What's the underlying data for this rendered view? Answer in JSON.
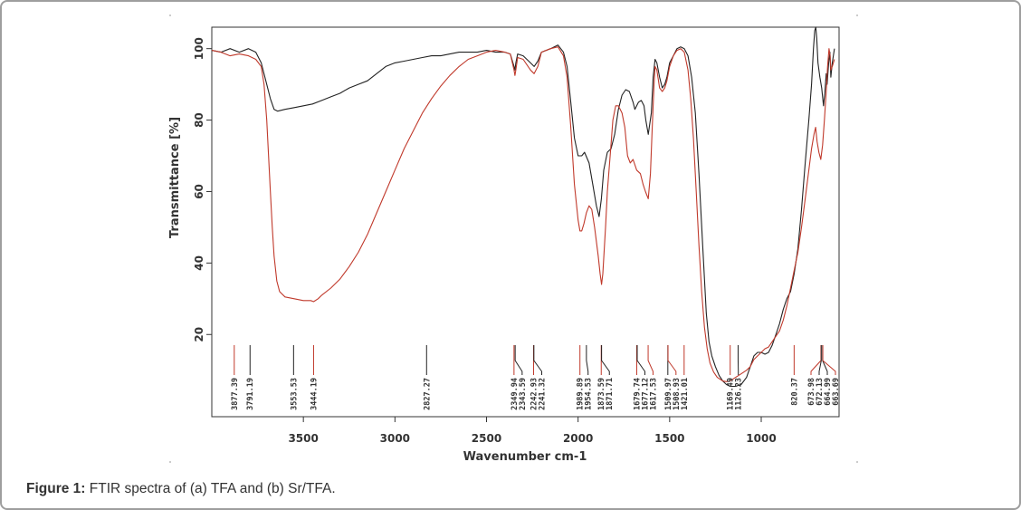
{
  "caption": {
    "label": "Figure 1:",
    "text": " FTIR spectra of (a) TFA and (b) Sr/TFA."
  },
  "chart_data": {
    "type": "line",
    "title": "",
    "xlabel": "Wavenumber cm-1",
    "ylabel": "Transmittance [%]",
    "xlim": [
      4000,
      575
    ],
    "ylim": [
      -3,
      106
    ],
    "x_ticks": [
      3500,
      3000,
      2500,
      2000,
      1500,
      1000
    ],
    "y_ticks": [
      20,
      40,
      60,
      80,
      100
    ],
    "colors": {
      "a": "#222222",
      "b": "#c0392b"
    },
    "series": [
      {
        "name": "(a) TFA",
        "color_key": "a",
        "points": [
          [
            4000,
            99.5
          ],
          [
            3950,
            99
          ],
          [
            3900,
            100
          ],
          [
            3850,
            99
          ],
          [
            3800,
            100
          ],
          [
            3760,
            99
          ],
          [
            3730,
            96
          ],
          [
            3700,
            90
          ],
          [
            3680,
            86
          ],
          [
            3660,
            83
          ],
          [
            3640,
            82.5
          ],
          [
            3600,
            83
          ],
          [
            3550,
            83.5
          ],
          [
            3500,
            84
          ],
          [
            3450,
            84.5
          ],
          [
            3400,
            85.5
          ],
          [
            3350,
            86.5
          ],
          [
            3300,
            87.5
          ],
          [
            3250,
            89
          ],
          [
            3200,
            90
          ],
          [
            3150,
            91
          ],
          [
            3100,
            93
          ],
          [
            3050,
            95
          ],
          [
            3000,
            96
          ],
          [
            2950,
            96.5
          ],
          [
            2900,
            97
          ],
          [
            2850,
            97.5
          ],
          [
            2800,
            98
          ],
          [
            2750,
            98
          ],
          [
            2700,
            98.5
          ],
          [
            2650,
            99
          ],
          [
            2600,
            99
          ],
          [
            2550,
            99
          ],
          [
            2500,
            99.5
          ],
          [
            2450,
            99
          ],
          [
            2400,
            99
          ],
          [
            2370,
            98.5
          ],
          [
            2350,
            95
          ],
          [
            2345,
            94
          ],
          [
            2340,
            96
          ],
          [
            2330,
            98.5
          ],
          [
            2300,
            98
          ],
          [
            2260,
            96
          ],
          [
            2240,
            95
          ],
          [
            2220,
            96.5
          ],
          [
            2200,
            99
          ],
          [
            2150,
            100
          ],
          [
            2110,
            101
          ],
          [
            2080,
            99
          ],
          [
            2060,
            95
          ],
          [
            2040,
            85
          ],
          [
            2020,
            75
          ],
          [
            2000,
            70
          ],
          [
            1980,
            70
          ],
          [
            1965,
            71
          ],
          [
            1940,
            68
          ],
          [
            1920,
            62
          ],
          [
            1900,
            56
          ],
          [
            1885,
            53
          ],
          [
            1873,
            58
          ],
          [
            1860,
            66
          ],
          [
            1840,
            71
          ],
          [
            1820,
            72
          ],
          [
            1800,
            76
          ],
          [
            1780,
            83
          ],
          [
            1760,
            87
          ],
          [
            1740,
            88.5
          ],
          [
            1720,
            88
          ],
          [
            1700,
            85
          ],
          [
            1690,
            83
          ],
          [
            1670,
            85
          ],
          [
            1655,
            85.5
          ],
          [
            1640,
            84
          ],
          [
            1630,
            80
          ],
          [
            1617,
            76
          ],
          [
            1600,
            82
          ],
          [
            1590,
            92
          ],
          [
            1580,
            97
          ],
          [
            1570,
            96
          ],
          [
            1555,
            92
          ],
          [
            1540,
            89
          ],
          [
            1527,
            90
          ],
          [
            1515,
            92
          ],
          [
            1500,
            96
          ],
          [
            1480,
            98
          ],
          [
            1460,
            100
          ],
          [
            1440,
            100.5
          ],
          [
            1420,
            100
          ],
          [
            1400,
            98
          ],
          [
            1380,
            92
          ],
          [
            1360,
            82
          ],
          [
            1340,
            65
          ],
          [
            1320,
            45
          ],
          [
            1300,
            26
          ],
          [
            1285,
            18
          ],
          [
            1270,
            14
          ],
          [
            1250,
            11
          ],
          [
            1230,
            8.5
          ],
          [
            1210,
            7
          ],
          [
            1190,
            6
          ],
          [
            1170,
            5.5
          ],
          [
            1140,
            5.5
          ],
          [
            1110,
            6
          ],
          [
            1080,
            8
          ],
          [
            1060,
            11
          ],
          [
            1040,
            14
          ],
          [
            1020,
            15
          ],
          [
            1000,
            15
          ],
          [
            980,
            14.5
          ],
          [
            960,
            15
          ],
          [
            940,
            17
          ],
          [
            920,
            20
          ],
          [
            900,
            23
          ],
          [
            880,
            27
          ],
          [
            860,
            30
          ],
          [
            840,
            32
          ],
          [
            820,
            37
          ],
          [
            800,
            44
          ],
          [
            780,
            55
          ],
          [
            760,
            68
          ],
          [
            740,
            80
          ],
          [
            725,
            90
          ],
          [
            715,
            100
          ],
          [
            708,
            105
          ],
          [
            702,
            106
          ],
          [
            697,
            103
          ],
          [
            690,
            96
          ],
          [
            680,
            92
          ],
          [
            670,
            89
          ],
          [
            660,
            84
          ],
          [
            652,
            88
          ],
          [
            645,
            93
          ],
          [
            640,
            90
          ],
          [
            632,
            96
          ],
          [
            625,
            99
          ],
          [
            620,
            92
          ],
          [
            612,
            96
          ],
          [
            600,
            100
          ]
        ]
      },
      {
        "name": "(b) Sr/TFA",
        "color_key": "b",
        "points": [
          [
            4000,
            99.5
          ],
          [
            3950,
            99
          ],
          [
            3900,
            98
          ],
          [
            3850,
            98.5
          ],
          [
            3800,
            98
          ],
          [
            3760,
            97
          ],
          [
            3730,
            95
          ],
          [
            3715,
            90
          ],
          [
            3700,
            80
          ],
          [
            3690,
            70
          ],
          [
            3680,
            60
          ],
          [
            3670,
            50
          ],
          [
            3660,
            42
          ],
          [
            3645,
            35
          ],
          [
            3630,
            32
          ],
          [
            3600,
            30.5
          ],
          [
            3550,
            30
          ],
          [
            3500,
            29.5
          ],
          [
            3460,
            29.5
          ],
          [
            3444,
            29.2
          ],
          [
            3420,
            30
          ],
          [
            3400,
            31
          ],
          [
            3350,
            33
          ],
          [
            3300,
            35.5
          ],
          [
            3250,
            39
          ],
          [
            3200,
            43
          ],
          [
            3150,
            48
          ],
          [
            3100,
            54
          ],
          [
            3050,
            60
          ],
          [
            3000,
            66
          ],
          [
            2950,
            72
          ],
          [
            2900,
            77
          ],
          [
            2850,
            82
          ],
          [
            2800,
            86
          ],
          [
            2750,
            89.5
          ],
          [
            2700,
            92.5
          ],
          [
            2650,
            95
          ],
          [
            2600,
            97
          ],
          [
            2550,
            98
          ],
          [
            2500,
            99
          ],
          [
            2450,
            99.5
          ],
          [
            2400,
            99
          ],
          [
            2370,
            98.5
          ],
          [
            2350,
            94
          ],
          [
            2345,
            92.5
          ],
          [
            2340,
            94
          ],
          [
            2330,
            97.5
          ],
          [
            2300,
            97
          ],
          [
            2260,
            94
          ],
          [
            2240,
            93
          ],
          [
            2220,
            95
          ],
          [
            2200,
            99
          ],
          [
            2150,
            100
          ],
          [
            2110,
            100.5
          ],
          [
            2080,
            98
          ],
          [
            2060,
            92
          ],
          [
            2040,
            78
          ],
          [
            2020,
            62
          ],
          [
            2000,
            52
          ],
          [
            1990,
            49
          ],
          [
            1980,
            49
          ],
          [
            1968,
            51
          ],
          [
            1955,
            54
          ],
          [
            1940,
            56
          ],
          [
            1925,
            55
          ],
          [
            1910,
            50
          ],
          [
            1890,
            42
          ],
          [
            1880,
            37
          ],
          [
            1872,
            34
          ],
          [
            1865,
            37
          ],
          [
            1850,
            50
          ],
          [
            1840,
            60
          ],
          [
            1825,
            70
          ],
          [
            1810,
            80
          ],
          [
            1795,
            84
          ],
          [
            1780,
            84
          ],
          [
            1760,
            82
          ],
          [
            1745,
            78
          ],
          [
            1730,
            70
          ],
          [
            1715,
            68
          ],
          [
            1700,
            69
          ],
          [
            1680,
            66
          ],
          [
            1660,
            65
          ],
          [
            1645,
            62
          ],
          [
            1632,
            60
          ],
          [
            1617,
            58
          ],
          [
            1605,
            65
          ],
          [
            1595,
            78
          ],
          [
            1585,
            90
          ],
          [
            1580,
            95
          ],
          [
            1570,
            94
          ],
          [
            1555,
            89
          ],
          [
            1540,
            88
          ],
          [
            1527,
            89
          ],
          [
            1515,
            91
          ],
          [
            1500,
            95
          ],
          [
            1480,
            98
          ],
          [
            1460,
            99.5
          ],
          [
            1440,
            100
          ],
          [
            1420,
            99
          ],
          [
            1400,
            94
          ],
          [
            1385,
            86
          ],
          [
            1370,
            75
          ],
          [
            1355,
            60
          ],
          [
            1340,
            45
          ],
          [
            1325,
            32
          ],
          [
            1310,
            22
          ],
          [
            1295,
            16
          ],
          [
            1280,
            12
          ],
          [
            1260,
            9.5
          ],
          [
            1240,
            8
          ],
          [
            1210,
            7
          ],
          [
            1190,
            6.8
          ],
          [
            1170,
            7
          ],
          [
            1140,
            8
          ],
          [
            1110,
            9
          ],
          [
            1080,
            10
          ],
          [
            1060,
            11
          ],
          [
            1040,
            13
          ],
          [
            1020,
            14
          ],
          [
            1000,
            15
          ],
          [
            980,
            16
          ],
          [
            960,
            16.5
          ],
          [
            940,
            18
          ],
          [
            920,
            19.5
          ],
          [
            900,
            21
          ],
          [
            880,
            24
          ],
          [
            860,
            28
          ],
          [
            840,
            33
          ],
          [
            820,
            38
          ],
          [
            800,
            43
          ],
          [
            780,
            50
          ],
          [
            760,
            58
          ],
          [
            740,
            66
          ],
          [
            725,
            72
          ],
          [
            712,
            76
          ],
          [
            703,
            78
          ],
          [
            695,
            74
          ],
          [
            685,
            71
          ],
          [
            675,
            69
          ],
          [
            665,
            73
          ],
          [
            655,
            80
          ],
          [
            645,
            88
          ],
          [
            638,
            95
          ],
          [
            630,
            100
          ],
          [
            624,
            98
          ],
          [
            620,
            94
          ],
          [
            612,
            95
          ],
          [
            600,
            97
          ]
        ]
      }
    ],
    "peaks": [
      {
        "label": "3877.39",
        "x": 3877.39,
        "color_key": "b"
      },
      {
        "label": "3791.19",
        "x": 3791.19,
        "color_key": "a"
      },
      {
        "label": "3553.53",
        "x": 3553.53,
        "color_key": "a"
      },
      {
        "label": "3444.19",
        "x": 3444.19,
        "color_key": "b"
      },
      {
        "label": "2827.27",
        "x": 2827.27,
        "color_key": "a"
      },
      {
        "label": "2349.94",
        "x": 2349.94,
        "color_key": "b"
      },
      {
        "label": "2343.59",
        "x": 2343.59,
        "color_key": "a"
      },
      {
        "label": "2242.93",
        "x": 2242.93,
        "color_key": "b"
      },
      {
        "label": "2241.32",
        "x": 2241.32,
        "color_key": "a"
      },
      {
        "label": "1989.89",
        "x": 1989.89,
        "color_key": "b"
      },
      {
        "label": "1954.53",
        "x": 1954.53,
        "color_key": "a"
      },
      {
        "label": "1873.59",
        "x": 1873.59,
        "color_key": "b"
      },
      {
        "label": "1871.71",
        "x": 1871.71,
        "color_key": "a"
      },
      {
        "label": "1679.74",
        "x": 1679.74,
        "color_key": "b"
      },
      {
        "label": "1677.12",
        "x": 1677.12,
        "color_key": "a"
      },
      {
        "label": "1617.53",
        "x": 1617.53,
        "color_key": "b"
      },
      {
        "label": "1509.97",
        "x": 1509.97,
        "color_key": "a"
      },
      {
        "label": "1508.93",
        "x": 1508.93,
        "color_key": "b"
      },
      {
        "label": "1421.01",
        "x": 1421.01,
        "color_key": "b"
      },
      {
        "label": "1169.49",
        "x": 1169.49,
        "color_key": "b"
      },
      {
        "label": "1126.23",
        "x": 1126.23,
        "color_key": "a"
      },
      {
        "label": "820.37",
        "x": 820.37,
        "color_key": "b"
      },
      {
        "label": "664.99",
        "x": 664.99,
        "color_key": "a"
      },
      {
        "label": "663.69",
        "x": 663.69,
        "color_key": "b"
      },
      {
        "label": "672.13",
        "x": 672.13,
        "color_key": "a"
      },
      {
        "label": "673.98",
        "x": 673.98,
        "color_key": "b"
      }
    ]
  }
}
